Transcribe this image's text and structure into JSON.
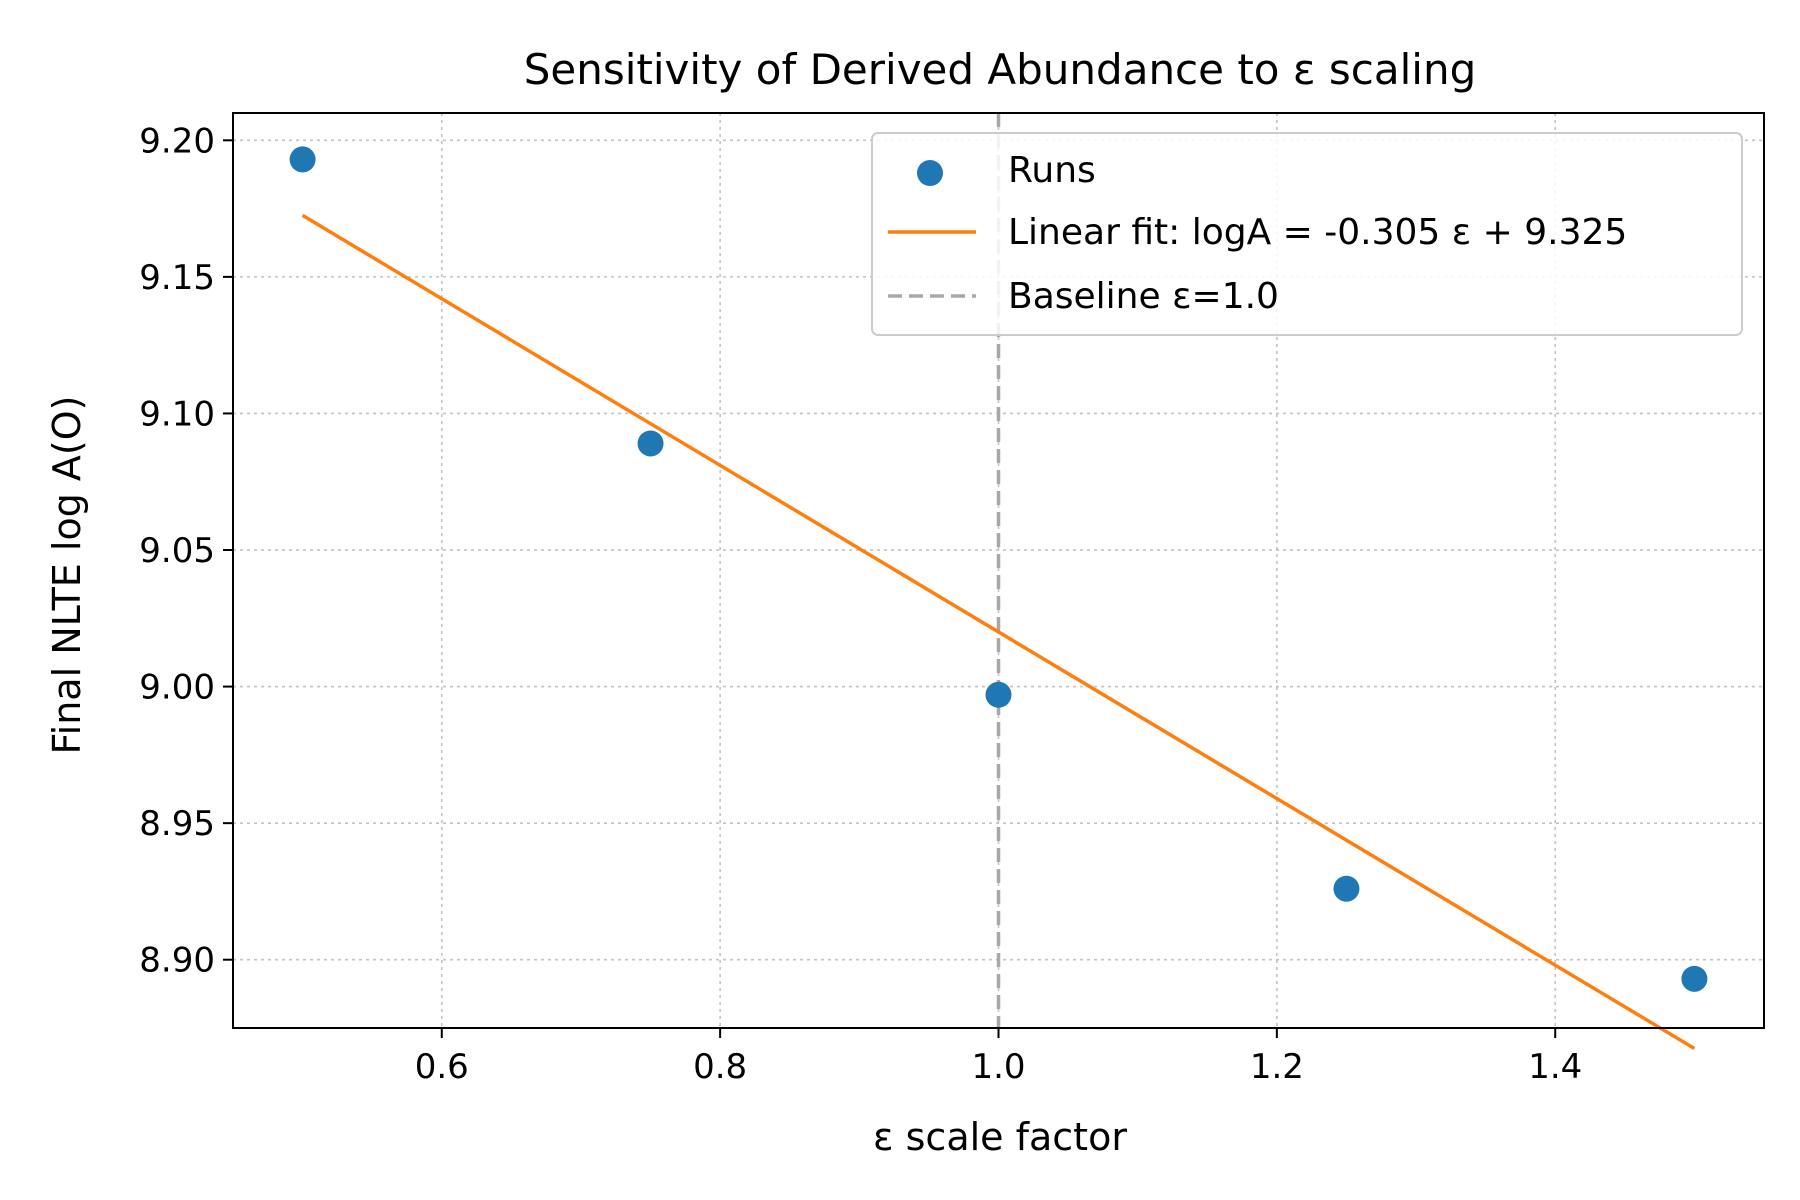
{
  "chart_data": {
    "type": "scatter",
    "title": "Sensitivity of Derived Abundance to ε scaling",
    "xlabel": "ε scale factor",
    "ylabel": "Final NLTE log A(O)",
    "xlim": [
      0.45,
      1.55
    ],
    "ylim": [
      8.875,
      9.21
    ],
    "xticks": [
      0.6,
      0.8,
      1.0,
      1.2,
      1.4
    ],
    "xtick_labels": [
      "0.6",
      "0.8",
      "1.0",
      "1.2",
      "1.4"
    ],
    "yticks": [
      8.9,
      8.95,
      9.0,
      9.05,
      9.1,
      9.15,
      9.2
    ],
    "ytick_labels": [
      "8.90",
      "8.95",
      "9.00",
      "9.05",
      "9.10",
      "9.15",
      "9.20"
    ],
    "grid": true,
    "legend_position": "top-right",
    "series": [
      {
        "name": "Runs",
        "kind": "scatter",
        "color": "#1f77b4",
        "x": [
          0.5,
          0.75,
          1.0,
          1.25,
          1.5
        ],
        "y": [
          9.193,
          9.089,
          8.997,
          8.926,
          8.893
        ]
      },
      {
        "name": "Linear fit: logA = -0.305 ε + 9.325",
        "kind": "line",
        "color": "#ff7f0e",
        "slope": -0.305,
        "intercept": 9.325,
        "x": [
          0.5,
          1.5
        ]
      },
      {
        "name": "Baseline ε=1.0",
        "kind": "vline",
        "color": "#a8a8a8",
        "x": 1.0
      }
    ]
  }
}
